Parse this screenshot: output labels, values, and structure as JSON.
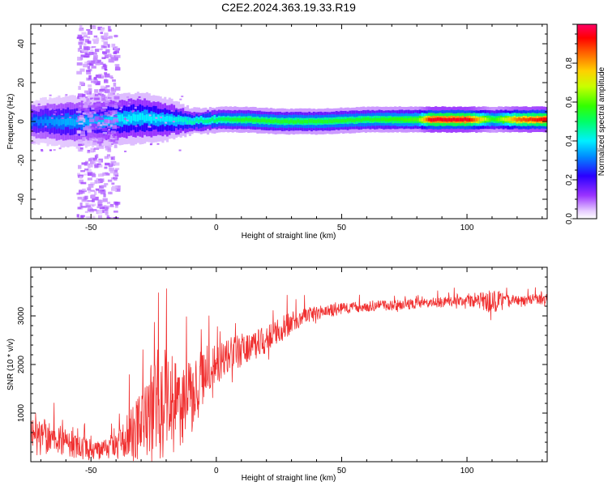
{
  "title": "C2E2.2024.363.19.33.R19",
  "colors": {
    "snr_line": "#f03030",
    "axes": "#000000",
    "background": "#ffffff"
  },
  "chart_data": [
    {
      "type": "heatmap",
      "title": "",
      "xlabel": "Height of straight line (km)",
      "ylabel": "Frequency (Hz)",
      "xlim": [
        -74,
        132
      ],
      "ylim": [
        -50,
        50
      ],
      "x_ticks": [
        -50,
        0,
        50,
        100
      ],
      "y_ticks": [
        -40,
        -20,
        0,
        20,
        40
      ],
      "grid": false,
      "colorbar": {
        "label": "Normalized spectral amplitude",
        "range": [
          0,
          1
        ],
        "ticks": [
          0.0,
          0.2,
          0.4,
          0.6,
          0.8
        ],
        "colormap": "rainbow (purple-blue-cyan-green-yellow-orange-red-magenta)"
      },
      "band_profile": [
        {
          "x": -74,
          "center": 0,
          "halfwidth": 5,
          "amplitude": 0.3
        },
        {
          "x": -60,
          "center": 0,
          "halfwidth": 6,
          "amplitude": 0.35
        },
        {
          "x": -50,
          "center": 0,
          "halfwidth": 6,
          "amplitude": 0.35
        },
        {
          "x": -40,
          "center": 1,
          "halfwidth": 6,
          "amplitude": 0.4
        },
        {
          "x": -30,
          "center": 2,
          "halfwidth": 6,
          "amplitude": 0.4
        },
        {
          "x": -20,
          "center": 1,
          "halfwidth": 5,
          "amplitude": 0.4
        },
        {
          "x": -10,
          "center": 0,
          "halfwidth": 3,
          "amplitude": 0.45
        },
        {
          "x": 0,
          "center": 1,
          "halfwidth": 3,
          "amplitude": 0.5
        },
        {
          "x": 10,
          "center": 1,
          "halfwidth": 3,
          "amplitude": 0.55
        },
        {
          "x": 25,
          "center": 0,
          "halfwidth": 3,
          "amplitude": 0.55
        },
        {
          "x": 40,
          "center": 0,
          "halfwidth": 3,
          "amplitude": 0.55
        },
        {
          "x": 60,
          "center": 1,
          "halfwidth": 3,
          "amplitude": 0.55
        },
        {
          "x": 80,
          "center": 1,
          "halfwidth": 3,
          "amplitude": 0.6
        },
        {
          "x": 85,
          "center": 1,
          "halfwidth": 3,
          "amplitude": 0.95
        },
        {
          "x": 100,
          "center": 1,
          "halfwidth": 3,
          "amplitude": 0.95
        },
        {
          "x": 110,
          "center": 1,
          "halfwidth": 3,
          "amplitude": 0.55
        },
        {
          "x": 120,
          "center": 1,
          "halfwidth": 3,
          "amplitude": 0.85
        },
        {
          "x": 132,
          "center": 1,
          "halfwidth": 3,
          "amplitude": 0.95
        }
      ],
      "scatter_zone": {
        "x": [
          -56,
          -40
        ],
        "y": [
          -50,
          50
        ],
        "amplitude": 0.08
      }
    },
    {
      "type": "line",
      "title": "",
      "xlabel": "Height of straight line (km)",
      "ylabel": "SNR (10 * v/v)",
      "xlim": [
        -74,
        132
      ],
      "ylim": [
        0,
        4000
      ],
      "x_ticks": [
        -50,
        0,
        50,
        100
      ],
      "y_ticks": [
        1000,
        2000,
        3000
      ],
      "grid": false,
      "envelope": [
        {
          "x": -74,
          "base": 600,
          "spike": 800
        },
        {
          "x": -65,
          "base": 450,
          "spike": 500
        },
        {
          "x": -55,
          "base": 300,
          "spike": 400
        },
        {
          "x": -45,
          "base": 200,
          "spike": 350
        },
        {
          "x": -40,
          "base": 350,
          "spike": 400
        },
        {
          "x": -35,
          "base": 500,
          "spike": 800
        },
        {
          "x": -30,
          "base": 800,
          "spike": 1200
        },
        {
          "x": -25,
          "base": 1000,
          "spike": 1900
        },
        {
          "x": -20,
          "base": 1200,
          "spike": 2000
        },
        {
          "x": -15,
          "base": 1200,
          "spike": 1500
        },
        {
          "x": -10,
          "base": 1300,
          "spike": 1300
        },
        {
          "x": -5,
          "base": 1700,
          "spike": 900
        },
        {
          "x": 0,
          "base": 2000,
          "spike": 700
        },
        {
          "x": 5,
          "base": 2200,
          "spike": 600
        },
        {
          "x": 10,
          "base": 2300,
          "spike": 600
        },
        {
          "x": 15,
          "base": 2400,
          "spike": 500
        },
        {
          "x": 20,
          "base": 2500,
          "spike": 500
        },
        {
          "x": 25,
          "base": 2700,
          "spike": 450
        },
        {
          "x": 30,
          "base": 2850,
          "spike": 400
        },
        {
          "x": 35,
          "base": 3000,
          "spike": 300
        },
        {
          "x": 40,
          "base": 3050,
          "spike": 250
        },
        {
          "x": 50,
          "base": 3150,
          "spike": 200
        },
        {
          "x": 60,
          "base": 3200,
          "spike": 180
        },
        {
          "x": 70,
          "base": 3220,
          "spike": 180
        },
        {
          "x": 80,
          "base": 3250,
          "spike": 180
        },
        {
          "x": 90,
          "base": 3280,
          "spike": 180
        },
        {
          "x": 100,
          "base": 3300,
          "spike": 180
        },
        {
          "x": 105,
          "base": 3300,
          "spike": 250
        },
        {
          "x": 110,
          "base": 3300,
          "spike": 500
        },
        {
          "x": 115,
          "base": 3300,
          "spike": 250
        },
        {
          "x": 120,
          "base": 3330,
          "spike": 180
        },
        {
          "x": 132,
          "base": 3350,
          "spike": 180
        }
      ]
    }
  ]
}
